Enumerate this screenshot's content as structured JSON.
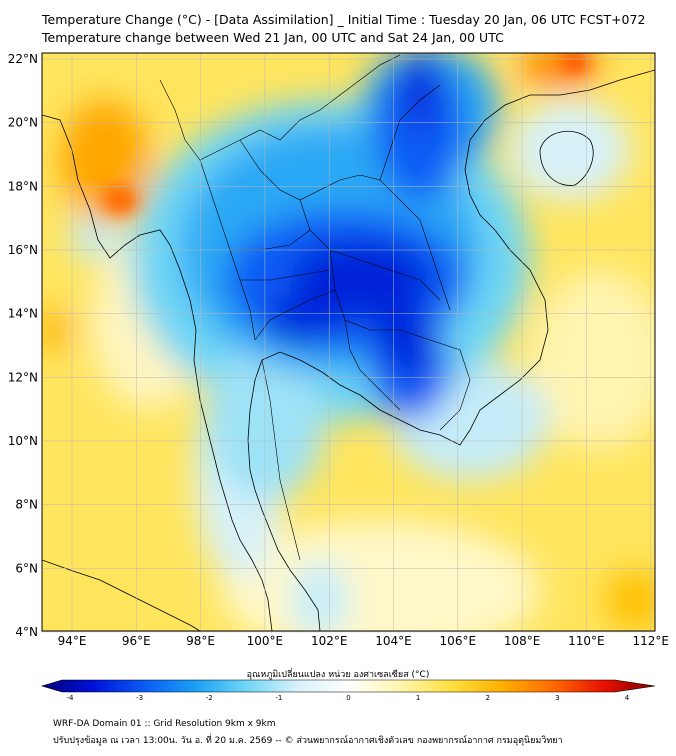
{
  "title_line1": "Temperature Change (°C) - [Data Assimilation] _ Initial Time : Tuesday 20 Jan, 06 UTC FCST+072",
  "title_line2": "Temperature change between Wed 21 Jan, 00 UTC and Sat 24 Jan, 00 UTC",
  "lat_labels": [
    "22°N",
    "20°N",
    "18°N",
    "16°N",
    "14°N",
    "12°N",
    "10°N",
    "8°N",
    "6°N",
    "4°N"
  ],
  "lon_labels": [
    "94°E",
    "96°E",
    "98°E",
    "100°E",
    "102°E",
    "104°E",
    "106°E",
    "108°E",
    "110°E",
    "112°E"
  ],
  "colorbar": {
    "label": "อุณหภูมิเปลี่ยนแปลง หน่วย องศาเซลเซียส (°C)",
    "ticks": [
      "-4",
      "-3",
      "-2",
      "-1",
      "0",
      "1",
      "2",
      "3",
      "4"
    ],
    "min": -4,
    "max": 4,
    "colors": [
      "#00007a",
      "#0010d8",
      "#0a5cf5",
      "#1aa0f5",
      "#6ed6f5",
      "#d8f2fa",
      "#ffffff",
      "#fff6b0",
      "#ffe040",
      "#ffb000",
      "#ff6a00",
      "#e81000",
      "#7a0000"
    ]
  },
  "footer_line1": "WRF-DA Domain 01 :: Grid Resolution 9km x 9km",
  "footer_line2": "ปรับปรุงข้อมูล ณ เวลา 13:00น. วัน อ. ที่ 20 ม.ค. 2569 -- © ส่วนพยากรณ์อากาศเชิงตัวเลข กองพยากรณ์อากาศ กรมอุตุนิยมวิทยา"
}
